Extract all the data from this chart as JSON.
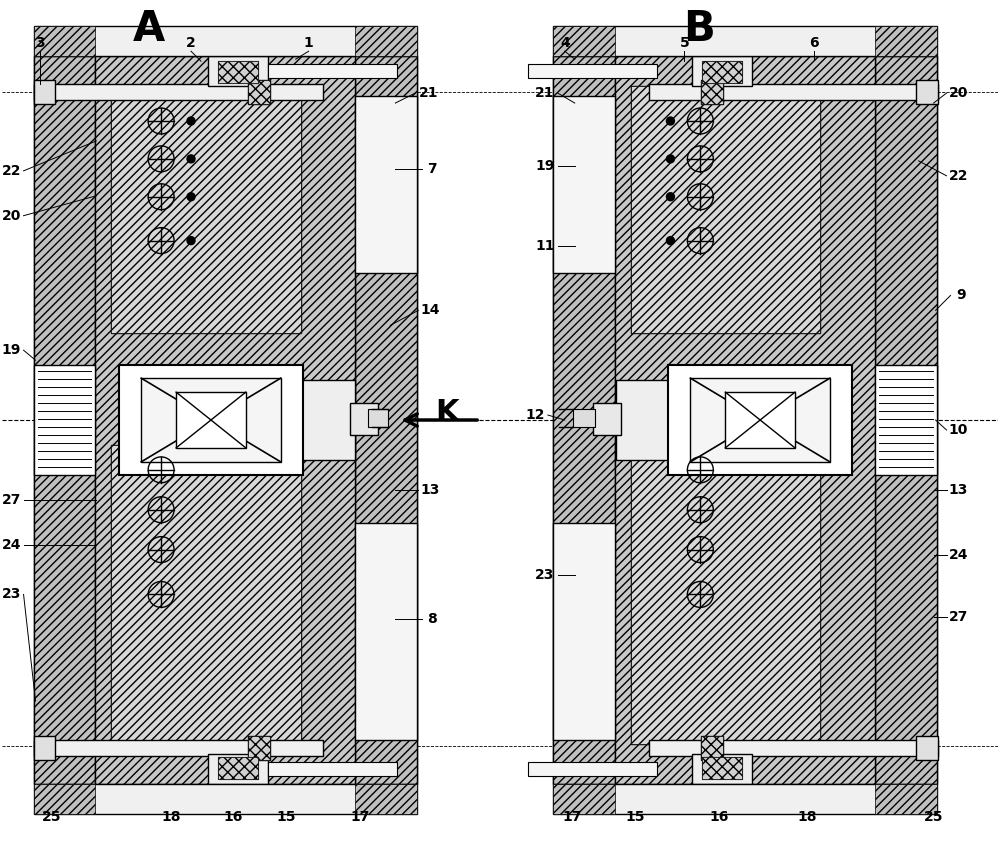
{
  "figure_width": 10.0,
  "figure_height": 8.49,
  "bg_color": "#ffffff",
  "label_A": "A",
  "label_B": "B",
  "label_K": "K"
}
